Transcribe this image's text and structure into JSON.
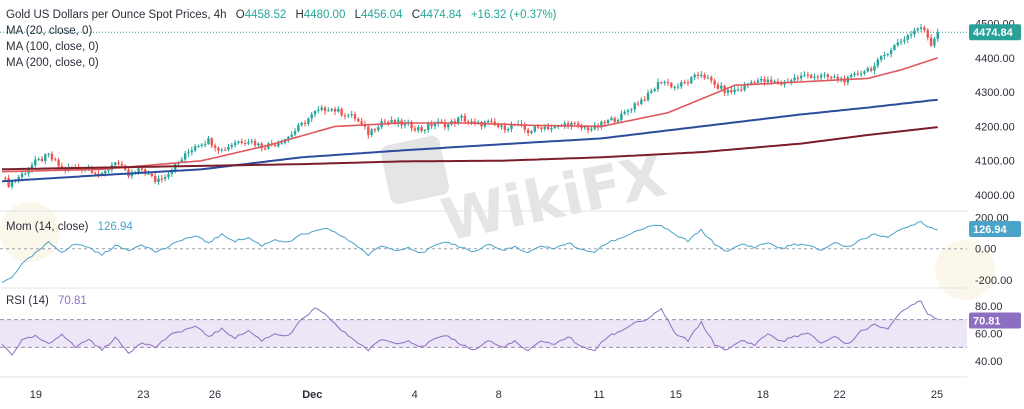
{
  "header": {
    "symbol": "Gold US Dollars per Ounce Spot Prices, 4h",
    "o_label": "O",
    "o_value": "4458.52",
    "h_label": "H",
    "h_value": "4480.00",
    "l_label": "L",
    "l_value": "4456.04",
    "c_label": "C",
    "c_value": "4474.84",
    "change": "+16.32 (+0.37%)"
  },
  "ma_legend": [
    "MA (20, close, 0)",
    "MA (100, close, 0)",
    "MA (200, close, 0)"
  ],
  "mom_legend": {
    "label": "Mom (14, close)",
    "value": "126.94"
  },
  "rsi_legend": {
    "label": "RSI (14)",
    "value": "70.81"
  },
  "price_badge": "4474.84",
  "mom_badge": "126.94",
  "rsi_badge": "70.81",
  "watermark": "WikiFX",
  "colors": {
    "up": "#26a69a",
    "down": "#ef5350",
    "ma20": "#e0575e",
    "ma100": "#2c4c9c",
    "ma200": "#7b1d2a",
    "mom": "#4aa3c8",
    "rsi": "#8c6fc0",
    "rsi_band": "#ede6f7",
    "price_badge": "#2aa198",
    "mom_badge": "#4aa3c8",
    "rsi_badge": "#8c6fc0"
  },
  "chart_data": [
    {
      "type": "candlestick",
      "title": "Gold US Dollars per Ounce Spot Prices, 4h",
      "x_ticks": [
        "19",
        "23",
        "26",
        "Dec",
        "4",
        "8",
        "11",
        "15",
        "18",
        "22",
        "25"
      ],
      "y_ticks": [
        4000,
        4100,
        4200,
        4300,
        4400,
        4500
      ],
      "ylim": [
        3965,
        4525
      ],
      "last_close": 4474.84,
      "ohlc_anchors": [
        [
          0,
          4050
        ],
        [
          2,
          4032
        ],
        [
          6,
          4060
        ],
        [
          10,
          4095
        ],
        [
          14,
          4115
        ],
        [
          18,
          4075
        ],
        [
          26,
          4080
        ],
        [
          30,
          4055
        ],
        [
          34,
          4100
        ],
        [
          38,
          4055
        ],
        [
          42,
          4075
        ],
        [
          46,
          4042
        ],
        [
          50,
          4065
        ],
        [
          54,
          4105
        ],
        [
          58,
          4145
        ],
        [
          62,
          4160
        ],
        [
          66,
          4130
        ],
        [
          70,
          4155
        ],
        [
          74,
          4160
        ],
        [
          78,
          4142
        ],
        [
          82,
          4150
        ],
        [
          86,
          4170
        ],
        [
          90,
          4205
        ],
        [
          94,
          4240
        ],
        [
          98,
          4255
        ],
        [
          102,
          4240
        ],
        [
          106,
          4225
        ],
        [
          110,
          4180
        ],
        [
          114,
          4215
        ],
        [
          118,
          4210
        ],
        [
          122,
          4205
        ],
        [
          126,
          4190
        ],
        [
          130,
          4210
        ],
        [
          134,
          4205
        ],
        [
          138,
          4225
        ],
        [
          142,
          4205
        ],
        [
          146,
          4210
        ],
        [
          150,
          4195
        ],
        [
          154,
          4205
        ],
        [
          158,
          4185
        ],
        [
          162,
          4200
        ],
        [
          166,
          4195
        ],
        [
          170,
          4210
        ],
        [
          174,
          4195
        ],
        [
          178,
          4195
        ],
        [
          182,
          4215
        ],
        [
          186,
          4230
        ],
        [
          190,
          4265
        ],
        [
          194,
          4290
        ],
        [
          198,
          4335
        ],
        [
          202,
          4315
        ],
        [
          206,
          4330
        ],
        [
          210,
          4355
        ],
        [
          214,
          4320
        ],
        [
          218,
          4300
        ],
        [
          222,
          4310
        ],
        [
          226,
          4335
        ],
        [
          230,
          4330
        ],
        [
          234,
          4325
        ],
        [
          238,
          4340
        ],
        [
          242,
          4350
        ],
        [
          246,
          4345
        ],
        [
          250,
          4340
        ],
        [
          254,
          4335
        ],
        [
          258,
          4360
        ],
        [
          262,
          4375
        ],
        [
          266,
          4420
        ],
        [
          270,
          4450
        ],
        [
          274,
          4480
        ],
        [
          276,
          4490
        ],
        [
          278,
          4460
        ],
        [
          279,
          4440
        ],
        [
          281,
          4475
        ]
      ],
      "series": [
        {
          "name": "MA (20, close, 0)",
          "points": [
            [
              0,
              4068
            ],
            [
              30,
              4075
            ],
            [
              60,
              4100
            ],
            [
              80,
              4145
            ],
            [
              100,
              4200
            ],
            [
              120,
              4210
            ],
            [
              140,
              4210
            ],
            [
              160,
              4203
            ],
            [
              180,
              4200
            ],
            [
              200,
              4240
            ],
            [
              220,
              4320
            ],
            [
              240,
              4330
            ],
            [
              260,
              4340
            ],
            [
              270,
              4365
            ],
            [
              281,
              4400
            ]
          ]
        },
        {
          "name": "MA (100, close, 0)",
          "points": [
            [
              0,
              4040
            ],
            [
              30,
              4058
            ],
            [
              60,
              4075
            ],
            [
              90,
              4110
            ],
            [
              120,
              4130
            ],
            [
              150,
              4148
            ],
            [
              180,
              4165
            ],
            [
              210,
              4200
            ],
            [
              240,
              4235
            ],
            [
              260,
              4255
            ],
            [
              281,
              4278
            ]
          ]
        },
        {
          "name": "MA (200, close, 0)",
          "points": [
            [
              0,
              4075
            ],
            [
              30,
              4080
            ],
            [
              60,
              4085
            ],
            [
              90,
              4090
            ],
            [
              120,
              4098
            ],
            [
              150,
              4100
            ],
            [
              180,
              4110
            ],
            [
              210,
              4125
            ],
            [
              240,
              4150
            ],
            [
              260,
              4175
            ],
            [
              281,
              4198
            ]
          ]
        }
      ]
    },
    {
      "type": "line",
      "title": "Mom (14, close)",
      "y_ticks": [
        -200,
        0,
        200
      ],
      "ylim": [
        -240,
        230
      ],
      "series": [
        {
          "name": "Mom (14, close)",
          "points": [
            [
              0,
              -220
            ],
            [
              3,
              -180
            ],
            [
              6,
              -100
            ],
            [
              10,
              -30
            ],
            [
              14,
              40
            ],
            [
              18,
              -20
            ],
            [
              22,
              30
            ],
            [
              26,
              10
            ],
            [
              30,
              -40
            ],
            [
              34,
              20
            ],
            [
              38,
              -10
            ],
            [
              42,
              30
            ],
            [
              46,
              -20
            ],
            [
              50,
              10
            ],
            [
              54,
              60
            ],
            [
              58,
              80
            ],
            [
              62,
              40
            ],
            [
              66,
              90
            ],
            [
              70,
              50
            ],
            [
              74,
              70
            ],
            [
              78,
              20
            ],
            [
              82,
              60
            ],
            [
              86,
              40
            ],
            [
              90,
              90
            ],
            [
              94,
              110
            ],
            [
              98,
              130
            ],
            [
              102,
              80
            ],
            [
              106,
              30
            ],
            [
              110,
              -40
            ],
            [
              114,
              20
            ],
            [
              118,
              -10
            ],
            [
              122,
              10
            ],
            [
              126,
              -30
            ],
            [
              130,
              20
            ],
            [
              134,
              40
            ],
            [
              138,
              10
            ],
            [
              142,
              -20
            ],
            [
              146,
              30
            ],
            [
              150,
              -10
            ],
            [
              154,
              10
            ],
            [
              158,
              -30
            ],
            [
              162,
              20
            ],
            [
              166,
              0
            ],
            [
              170,
              40
            ],
            [
              174,
              -10
            ],
            [
              178,
              -20
            ],
            [
              182,
              40
            ],
            [
              186,
              70
            ],
            [
              190,
              110
            ],
            [
              194,
              140
            ],
            [
              198,
              150
            ],
            [
              202,
              90
            ],
            [
              206,
              50
            ],
            [
              210,
              120
            ],
            [
              214,
              30
            ],
            [
              218,
              -20
            ],
            [
              222,
              30
            ],
            [
              226,
              10
            ],
            [
              230,
              40
            ],
            [
              234,
              0
            ],
            [
              238,
              30
            ],
            [
              242,
              20
            ],
            [
              246,
              -10
            ],
            [
              250,
              40
            ],
            [
              254,
              10
            ],
            [
              258,
              60
            ],
            [
              262,
              90
            ],
            [
              266,
              80
            ],
            [
              270,
              120
            ],
            [
              274,
              160
            ],
            [
              276,
              180
            ],
            [
              278,
              140
            ],
            [
              281,
              127
            ]
          ]
        }
      ]
    },
    {
      "type": "line",
      "title": "RSI (14)",
      "y_ticks": [
        40,
        60,
        80
      ],
      "ylim": [
        30,
        90
      ],
      "band": [
        50,
        70
      ],
      "series": [
        {
          "name": "RSI (14)",
          "points": [
            [
              0,
              52
            ],
            [
              3,
              45
            ],
            [
              6,
              55
            ],
            [
              10,
              58
            ],
            [
              14,
              52
            ],
            [
              18,
              60
            ],
            [
              22,
              50
            ],
            [
              26,
              56
            ],
            [
              30,
              48
            ],
            [
              34,
              57
            ],
            [
              38,
              46
            ],
            [
              42,
              54
            ],
            [
              46,
              50
            ],
            [
              50,
              58
            ],
            [
              54,
              62
            ],
            [
              58,
              65
            ],
            [
              62,
              58
            ],
            [
              66,
              63
            ],
            [
              70,
              57
            ],
            [
              74,
              62
            ],
            [
              78,
              55
            ],
            [
              82,
              60
            ],
            [
              86,
              58
            ],
            [
              90,
              70
            ],
            [
              94,
              78
            ],
            [
              98,
              72
            ],
            [
              102,
              62
            ],
            [
              106,
              55
            ],
            [
              110,
              48
            ],
            [
              114,
              56
            ],
            [
              118,
              53
            ],
            [
              122,
              55
            ],
            [
              126,
              50
            ],
            [
              130,
              56
            ],
            [
              134,
              58
            ],
            [
              138,
              52
            ],
            [
              142,
              48
            ],
            [
              146,
              55
            ],
            [
              150,
              50
            ],
            [
              154,
              54
            ],
            [
              158,
              47
            ],
            [
              162,
              55
            ],
            [
              166,
              52
            ],
            [
              170,
              58
            ],
            [
              174,
              50
            ],
            [
              178,
              48
            ],
            [
              182,
              58
            ],
            [
              186,
              62
            ],
            [
              190,
              68
            ],
            [
              194,
              70
            ],
            [
              198,
              78
            ],
            [
              202,
              60
            ],
            [
              206,
              55
            ],
            [
              210,
              68
            ],
            [
              214,
              52
            ],
            [
              218,
              48
            ],
            [
              222,
              55
            ],
            [
              226,
              52
            ],
            [
              230,
              60
            ],
            [
              234,
              54
            ],
            [
              238,
              58
            ],
            [
              242,
              60
            ],
            [
              246,
              53
            ],
            [
              250,
              58
            ],
            [
              254,
              52
            ],
            [
              258,
              62
            ],
            [
              262,
              66
            ],
            [
              266,
              64
            ],
            [
              270,
              75
            ],
            [
              274,
              82
            ],
            [
              276,
              84
            ],
            [
              278,
              74
            ],
            [
              281,
              71
            ]
          ]
        }
      ]
    }
  ]
}
